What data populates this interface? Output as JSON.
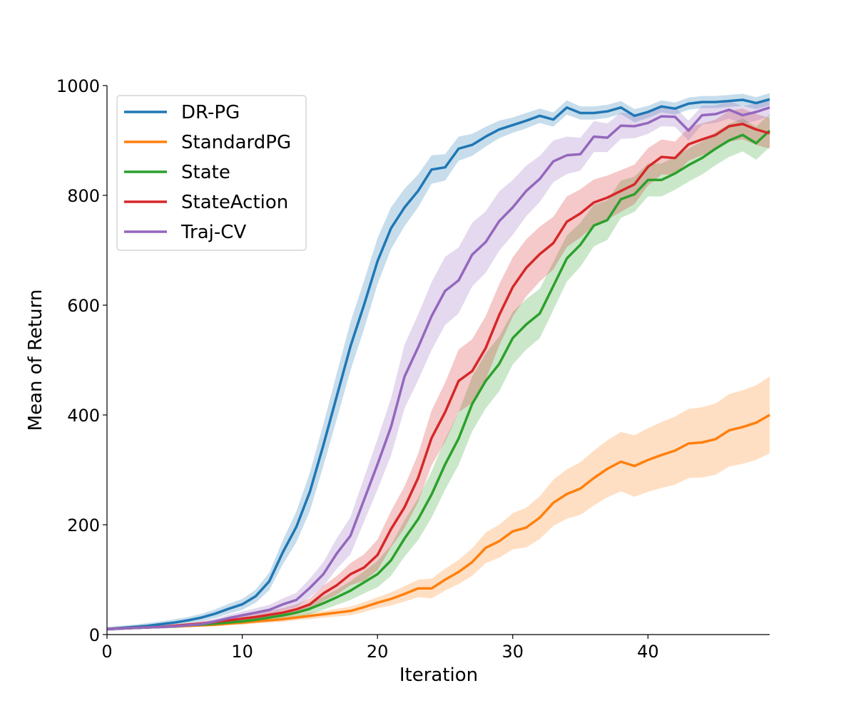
{
  "chart_data": {
    "type": "line",
    "xlabel": "Iteration",
    "ylabel": "Mean of Return",
    "xlim": [
      0,
      49
    ],
    "ylim": [
      0,
      1000
    ],
    "xticks": [
      0,
      10,
      20,
      30,
      40
    ],
    "yticks": [
      0,
      200,
      400,
      600,
      800,
      1000
    ],
    "grid": false,
    "legend_position": "upper-left",
    "x": [
      0,
      1,
      2,
      3,
      4,
      5,
      6,
      7,
      8,
      9,
      10,
      11,
      12,
      13,
      14,
      15,
      16,
      17,
      18,
      19,
      20,
      21,
      22,
      23,
      24,
      25,
      26,
      27,
      28,
      29,
      30,
      31,
      32,
      33,
      34,
      35,
      36,
      37,
      38,
      39,
      40,
      41,
      42,
      43,
      44,
      45,
      46,
      47,
      48,
      49
    ],
    "series": [
      {
        "name": "DR-PG",
        "color": "#1f77b4",
        "values": [
          10,
          12,
          14,
          16,
          19,
          22,
          26,
          31,
          38,
          47,
          55,
          70,
          97,
          150,
          196,
          260,
          345,
          435,
          525,
          600,
          680,
          740,
          778,
          808,
          847,
          851,
          885,
          892,
          907,
          920,
          928,
          936,
          945,
          938,
          960,
          950,
          950,
          953,
          960,
          945,
          952,
          962,
          958,
          967,
          970,
          970,
          972,
          974,
          968,
          975
        ],
        "band": [
          4,
          4,
          4,
          5,
          5,
          6,
          6,
          7,
          8,
          9,
          10,
          12,
          16,
          22,
          28,
          35,
          38,
          42,
          44,
          44,
          42,
          38,
          34,
          30,
          26,
          24,
          22,
          20,
          18,
          16,
          14,
          14,
          13,
          13,
          13,
          12,
          12,
          12,
          12,
          12,
          11,
          11,
          11,
          11,
          11,
          11,
          11,
          11,
          11,
          11
        ]
      },
      {
        "name": "StandardPG",
        "color": "#ff7f0e",
        "values": [
          10,
          11,
          12,
          13,
          14,
          15,
          16,
          17,
          18,
          20,
          22,
          24,
          26,
          28,
          31,
          34,
          37,
          40,
          43,
          50,
          58,
          65,
          74,
          84,
          84,
          100,
          114,
          132,
          158,
          170,
          188,
          195,
          213,
          240,
          256,
          266,
          285,
          302,
          315,
          307,
          318,
          327,
          335,
          348,
          350,
          356,
          372,
          378,
          386,
          400
        ],
        "band": [
          2,
          2,
          2,
          2,
          2,
          3,
          3,
          3,
          3,
          3,
          4,
          4,
          4,
          5,
          5,
          6,
          6,
          7,
          8,
          9,
          10,
          12,
          14,
          16,
          18,
          20,
          22,
          25,
          28,
          30,
          33,
          36,
          39,
          42,
          45,
          48,
          50,
          52,
          54,
          56,
          58,
          60,
          62,
          63,
          64,
          65,
          66,
          67,
          68,
          70
        ]
      },
      {
        "name": "State",
        "color": "#2ca02c",
        "values": [
          10,
          11,
          12,
          13,
          14,
          15,
          17,
          18,
          20,
          22,
          24,
          27,
          31,
          35,
          40,
          47,
          57,
          68,
          80,
          95,
          110,
          135,
          175,
          210,
          255,
          310,
          357,
          420,
          462,
          493,
          540,
          565,
          585,
          635,
          685,
          710,
          745,
          755,
          793,
          802,
          828,
          828,
          840,
          855,
          868,
          885,
          900,
          910,
          895,
          918
        ],
        "band": [
          2,
          2,
          2,
          2,
          2,
          3,
          3,
          3,
          4,
          4,
          5,
          5,
          6,
          7,
          8,
          10,
          12,
          14,
          17,
          20,
          24,
          28,
          33,
          38,
          42,
          46,
          48,
          50,
          50,
          50,
          48,
          46,
          45,
          44,
          42,
          40,
          38,
          36,
          34,
          32,
          30,
          30,
          30,
          30,
          30,
          30,
          30,
          30,
          30,
          30
        ]
      },
      {
        "name": "StateAction",
        "color": "#d62728",
        "values": [
          10,
          11,
          12,
          13,
          14,
          16,
          18,
          20,
          23,
          26,
          29,
          32,
          36,
          40,
          46,
          55,
          75,
          90,
          110,
          122,
          145,
          192,
          232,
          285,
          358,
          405,
          462,
          480,
          522,
          582,
          633,
          668,
          693,
          713,
          752,
          767,
          787,
          796,
          808,
          820,
          852,
          870,
          868,
          893,
          902,
          910,
          926,
          930,
          920,
          913
        ],
        "band": [
          2,
          2,
          2,
          2,
          3,
          3,
          3,
          4,
          4,
          5,
          6,
          6,
          7,
          8,
          9,
          11,
          14,
          17,
          20,
          24,
          28,
          33,
          38,
          44,
          50,
          54,
          57,
          58,
          58,
          56,
          54,
          52,
          50,
          48,
          46,
          44,
          42,
          40,
          38,
          36,
          34,
          32,
          30,
          30,
          29,
          28,
          28,
          28,
          28,
          28
        ]
      },
      {
        "name": "Traj-CV",
        "color": "#9467bd",
        "values": [
          10,
          11,
          12,
          13,
          14,
          15,
          17,
          19,
          24,
          30,
          35,
          40,
          45,
          55,
          63,
          85,
          110,
          148,
          180,
          245,
          310,
          378,
          470,
          523,
          580,
          626,
          645,
          692,
          715,
          753,
          778,
          808,
          830,
          862,
          873,
          875,
          907,
          905,
          927,
          926,
          932,
          944,
          943,
          918,
          946,
          948,
          956,
          946,
          952,
          960
        ],
        "band": [
          2,
          2,
          2,
          2,
          3,
          3,
          3,
          4,
          5,
          6,
          7,
          8,
          9,
          11,
          13,
          17,
          22,
          28,
          34,
          40,
          46,
          52,
          58,
          60,
          62,
          62,
          60,
          58,
          56,
          54,
          50,
          46,
          42,
          38,
          34,
          30,
          28,
          26,
          24,
          22,
          20,
          18,
          18,
          18,
          17,
          16,
          16,
          16,
          16,
          16
        ]
      }
    ]
  }
}
